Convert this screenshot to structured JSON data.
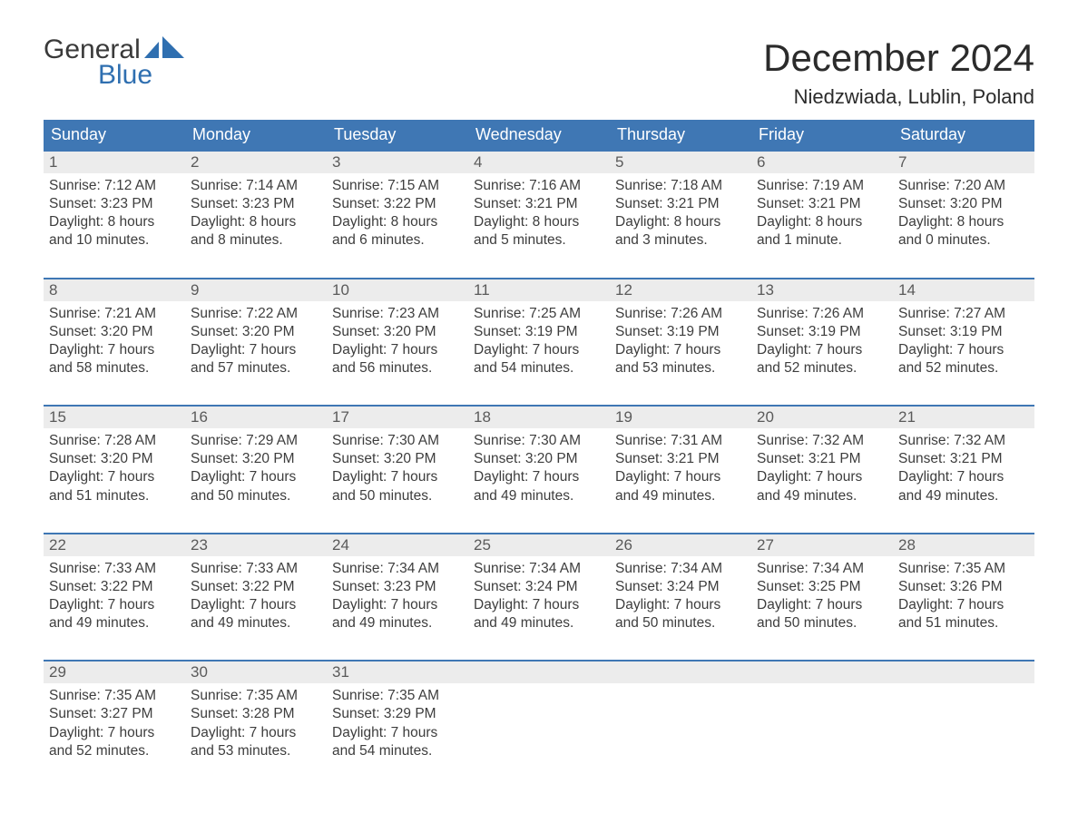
{
  "brand": {
    "line1": "General",
    "line2": "Blue",
    "logo_color": "#2f6fb0",
    "text_color": "#3a3a3a"
  },
  "title": "December 2024",
  "location": "Niedzwiada, Lublin, Poland",
  "colors": {
    "header_bg": "#3f77b4",
    "header_text": "#ffffff",
    "daynum_bg": "#ececec",
    "daynum_text": "#5a5a5a",
    "body_text": "#3d3d3d",
    "week_border": "#3f77b4",
    "page_bg": "#ffffff"
  },
  "weekdays": [
    "Sunday",
    "Monday",
    "Tuesday",
    "Wednesday",
    "Thursday",
    "Friday",
    "Saturday"
  ],
  "weeks": [
    [
      {
        "n": "1",
        "sunrise": "Sunrise: 7:12 AM",
        "sunset": "Sunset: 3:23 PM",
        "d1": "Daylight: 8 hours",
        "d2": "and 10 minutes."
      },
      {
        "n": "2",
        "sunrise": "Sunrise: 7:14 AM",
        "sunset": "Sunset: 3:23 PM",
        "d1": "Daylight: 8 hours",
        "d2": "and 8 minutes."
      },
      {
        "n": "3",
        "sunrise": "Sunrise: 7:15 AM",
        "sunset": "Sunset: 3:22 PM",
        "d1": "Daylight: 8 hours",
        "d2": "and 6 minutes."
      },
      {
        "n": "4",
        "sunrise": "Sunrise: 7:16 AM",
        "sunset": "Sunset: 3:21 PM",
        "d1": "Daylight: 8 hours",
        "d2": "and 5 minutes."
      },
      {
        "n": "5",
        "sunrise": "Sunrise: 7:18 AM",
        "sunset": "Sunset: 3:21 PM",
        "d1": "Daylight: 8 hours",
        "d2": "and 3 minutes."
      },
      {
        "n": "6",
        "sunrise": "Sunrise: 7:19 AM",
        "sunset": "Sunset: 3:21 PM",
        "d1": "Daylight: 8 hours",
        "d2": "and 1 minute."
      },
      {
        "n": "7",
        "sunrise": "Sunrise: 7:20 AM",
        "sunset": "Sunset: 3:20 PM",
        "d1": "Daylight: 8 hours",
        "d2": "and 0 minutes."
      }
    ],
    [
      {
        "n": "8",
        "sunrise": "Sunrise: 7:21 AM",
        "sunset": "Sunset: 3:20 PM",
        "d1": "Daylight: 7 hours",
        "d2": "and 58 minutes."
      },
      {
        "n": "9",
        "sunrise": "Sunrise: 7:22 AM",
        "sunset": "Sunset: 3:20 PM",
        "d1": "Daylight: 7 hours",
        "d2": "and 57 minutes."
      },
      {
        "n": "10",
        "sunrise": "Sunrise: 7:23 AM",
        "sunset": "Sunset: 3:20 PM",
        "d1": "Daylight: 7 hours",
        "d2": "and 56 minutes."
      },
      {
        "n": "11",
        "sunrise": "Sunrise: 7:25 AM",
        "sunset": "Sunset: 3:19 PM",
        "d1": "Daylight: 7 hours",
        "d2": "and 54 minutes."
      },
      {
        "n": "12",
        "sunrise": "Sunrise: 7:26 AM",
        "sunset": "Sunset: 3:19 PM",
        "d1": "Daylight: 7 hours",
        "d2": "and 53 minutes."
      },
      {
        "n": "13",
        "sunrise": "Sunrise: 7:26 AM",
        "sunset": "Sunset: 3:19 PM",
        "d1": "Daylight: 7 hours",
        "d2": "and 52 minutes."
      },
      {
        "n": "14",
        "sunrise": "Sunrise: 7:27 AM",
        "sunset": "Sunset: 3:19 PM",
        "d1": "Daylight: 7 hours",
        "d2": "and 52 minutes."
      }
    ],
    [
      {
        "n": "15",
        "sunrise": "Sunrise: 7:28 AM",
        "sunset": "Sunset: 3:20 PM",
        "d1": "Daylight: 7 hours",
        "d2": "and 51 minutes."
      },
      {
        "n": "16",
        "sunrise": "Sunrise: 7:29 AM",
        "sunset": "Sunset: 3:20 PM",
        "d1": "Daylight: 7 hours",
        "d2": "and 50 minutes."
      },
      {
        "n": "17",
        "sunrise": "Sunrise: 7:30 AM",
        "sunset": "Sunset: 3:20 PM",
        "d1": "Daylight: 7 hours",
        "d2": "and 50 minutes."
      },
      {
        "n": "18",
        "sunrise": "Sunrise: 7:30 AM",
        "sunset": "Sunset: 3:20 PM",
        "d1": "Daylight: 7 hours",
        "d2": "and 49 minutes."
      },
      {
        "n": "19",
        "sunrise": "Sunrise: 7:31 AM",
        "sunset": "Sunset: 3:21 PM",
        "d1": "Daylight: 7 hours",
        "d2": "and 49 minutes."
      },
      {
        "n": "20",
        "sunrise": "Sunrise: 7:32 AM",
        "sunset": "Sunset: 3:21 PM",
        "d1": "Daylight: 7 hours",
        "d2": "and 49 minutes."
      },
      {
        "n": "21",
        "sunrise": "Sunrise: 7:32 AM",
        "sunset": "Sunset: 3:21 PM",
        "d1": "Daylight: 7 hours",
        "d2": "and 49 minutes."
      }
    ],
    [
      {
        "n": "22",
        "sunrise": "Sunrise: 7:33 AM",
        "sunset": "Sunset: 3:22 PM",
        "d1": "Daylight: 7 hours",
        "d2": "and 49 minutes."
      },
      {
        "n": "23",
        "sunrise": "Sunrise: 7:33 AM",
        "sunset": "Sunset: 3:22 PM",
        "d1": "Daylight: 7 hours",
        "d2": "and 49 minutes."
      },
      {
        "n": "24",
        "sunrise": "Sunrise: 7:34 AM",
        "sunset": "Sunset: 3:23 PM",
        "d1": "Daylight: 7 hours",
        "d2": "and 49 minutes."
      },
      {
        "n": "25",
        "sunrise": "Sunrise: 7:34 AM",
        "sunset": "Sunset: 3:24 PM",
        "d1": "Daylight: 7 hours",
        "d2": "and 49 minutes."
      },
      {
        "n": "26",
        "sunrise": "Sunrise: 7:34 AM",
        "sunset": "Sunset: 3:24 PM",
        "d1": "Daylight: 7 hours",
        "d2": "and 50 minutes."
      },
      {
        "n": "27",
        "sunrise": "Sunrise: 7:34 AM",
        "sunset": "Sunset: 3:25 PM",
        "d1": "Daylight: 7 hours",
        "d2": "and 50 minutes."
      },
      {
        "n": "28",
        "sunrise": "Sunrise: 7:35 AM",
        "sunset": "Sunset: 3:26 PM",
        "d1": "Daylight: 7 hours",
        "d2": "and 51 minutes."
      }
    ],
    [
      {
        "n": "29",
        "sunrise": "Sunrise: 7:35 AM",
        "sunset": "Sunset: 3:27 PM",
        "d1": "Daylight: 7 hours",
        "d2": "and 52 minutes."
      },
      {
        "n": "30",
        "sunrise": "Sunrise: 7:35 AM",
        "sunset": "Sunset: 3:28 PM",
        "d1": "Daylight: 7 hours",
        "d2": "and 53 minutes."
      },
      {
        "n": "31",
        "sunrise": "Sunrise: 7:35 AM",
        "sunset": "Sunset: 3:29 PM",
        "d1": "Daylight: 7 hours",
        "d2": "and 54 minutes."
      },
      null,
      null,
      null,
      null
    ]
  ]
}
